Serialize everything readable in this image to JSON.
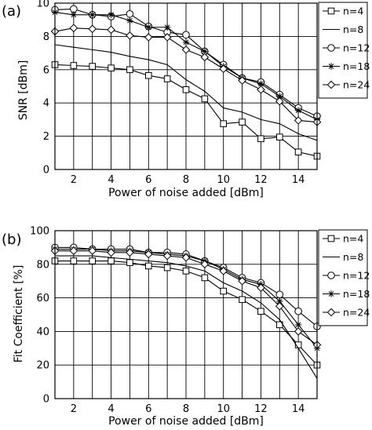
{
  "chart_data": [
    {
      "type": "line",
      "panel_label": "(a)",
      "xlabel": "Power of noise added [dBm]",
      "ylabel": "SNR [dBm]",
      "xlim": [
        1,
        15
      ],
      "ylim": [
        0,
        10
      ],
      "xticks": [
        2,
        4,
        6,
        8,
        10,
        12,
        14
      ],
      "yticks": [
        0,
        2,
        4,
        6,
        8,
        10
      ],
      "grid": true,
      "legend_position": "top-right",
      "x": [
        1,
        2,
        3,
        4,
        5,
        6,
        7,
        8,
        9,
        10,
        11,
        12,
        13,
        14,
        15
      ],
      "series": [
        {
          "name": "n=4",
          "marker": "square",
          "values": [
            6.3,
            6.25,
            6.2,
            6.1,
            6.0,
            5.65,
            5.45,
            4.8,
            4.25,
            2.75,
            2.85,
            1.85,
            1.95,
            1.05,
            0.8
          ]
        },
        {
          "name": "n=8",
          "marker": "none",
          "values": [
            7.5,
            7.35,
            7.2,
            7.05,
            6.8,
            6.6,
            6.3,
            5.4,
            4.7,
            3.7,
            3.45,
            3.0,
            2.75,
            2.15,
            1.75
          ]
        },
        {
          "name": "n=12",
          "marker": "circle",
          "values": [
            9.6,
            9.65,
            9.3,
            9.2,
            9.35,
            8.6,
            8.25,
            8.1,
            7.1,
            6.3,
            5.5,
            5.25,
            4.5,
            3.7,
            3.2
          ]
        },
        {
          "name": "n=18",
          "marker": "star",
          "values": [
            9.45,
            9.3,
            9.3,
            9.3,
            8.95,
            8.55,
            8.55,
            7.65,
            7.1,
            6.2,
            5.5,
            5.15,
            4.4,
            3.55,
            3.0
          ]
        },
        {
          "name": "n=24",
          "marker": "diamond",
          "values": [
            8.3,
            8.5,
            8.45,
            8.4,
            8.05,
            7.95,
            7.95,
            7.2,
            6.75,
            6.05,
            5.35,
            4.8,
            4.1,
            2.95,
            2.85
          ]
        }
      ]
    },
    {
      "type": "line",
      "panel_label": "(b)",
      "xlabel": "Power of noise added [dBm]",
      "ylabel": "Fit Coefficient [%]",
      "xlim": [
        1,
        15
      ],
      "ylim": [
        0,
        100
      ],
      "xticks": [
        2,
        4,
        6,
        8,
        10,
        12,
        14
      ],
      "yticks": [
        0,
        20,
        40,
        60,
        80,
        100
      ],
      "grid": true,
      "legend_position": "top-right",
      "x": [
        1,
        2,
        3,
        4,
        5,
        6,
        7,
        8,
        9,
        10,
        11,
        12,
        13,
        14,
        15
      ],
      "series": [
        {
          "name": "n=4",
          "marker": "square",
          "values": [
            82,
            82,
            82,
            82,
            81,
            79,
            78,
            76,
            72,
            64,
            59,
            52,
            44,
            32,
            20
          ]
        },
        {
          "name": "n=8",
          "marker": "none",
          "values": [
            85,
            85,
            85,
            84,
            83,
            82,
            81,
            79,
            76,
            69,
            64,
            57,
            47,
            30,
            12
          ]
        },
        {
          "name": "n=12",
          "marker": "circle",
          "values": [
            90,
            90,
            89,
            89,
            89,
            87,
            87,
            86,
            82,
            78,
            72,
            69,
            62,
            52,
            43
          ]
        },
        {
          "name": "n=18",
          "marker": "star",
          "values": [
            89,
            89,
            89,
            88,
            88,
            87,
            86,
            85,
            82,
            77,
            71,
            68,
            58,
            44,
            30
          ]
        },
        {
          "name": "n=24",
          "marker": "diamond",
          "values": [
            88,
            88,
            88,
            87,
            87,
            86,
            85,
            84,
            80,
            76,
            70,
            66,
            55,
            40,
            32
          ]
        }
      ]
    }
  ]
}
